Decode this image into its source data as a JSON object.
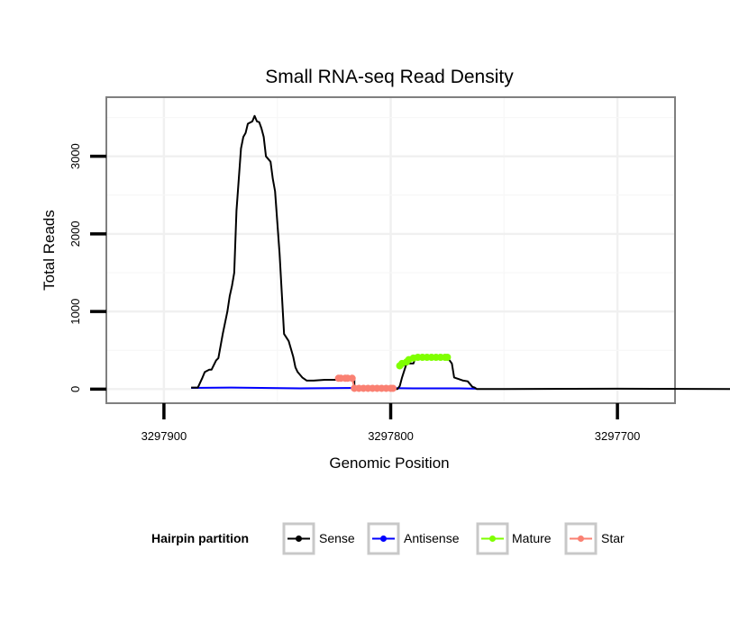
{
  "chart_data": {
    "type": "line",
    "title": "Small RNA-seq Read Density",
    "xlabel": "Genomic Position",
    "ylabel": "Total Reads",
    "xlim": [
      3297925,
      3297675
    ],
    "ylim": [
      -170,
      3750
    ],
    "x_reversed": true,
    "grid": true,
    "x_ticks": [
      3297900,
      3297800,
      3297700
    ],
    "x_tick_labels": [
      "3297900",
      "3297800",
      "3297700"
    ],
    "y_ticks": [
      0,
      1000,
      2000,
      3000
    ],
    "y_tick_labels": [
      "0",
      "1000",
      "2000",
      "3000"
    ],
    "legend": {
      "title": "Hairpin partition",
      "position": "bottom",
      "items": [
        {
          "label": "Sense",
          "color": "#000000"
        },
        {
          "label": "Antisense",
          "color": "#0000ff"
        },
        {
          "label": "Mature",
          "color": "#7fff00"
        },
        {
          "label": "Star",
          "color": "#fa8072"
        }
      ]
    },
    "series": [
      {
        "name": "Sense",
        "color": "#000000",
        "x": [
          3297888,
          3297885,
          3297883,
          3297882,
          3297880,
          3297879,
          3297877,
          3297876,
          3297874,
          3297872,
          3297871,
          3297870,
          3297869,
          3297868,
          3297866,
          3297865,
          3297864,
          3297863,
          3297861,
          3297860,
          3297859,
          3297858,
          3297857,
          3297856,
          3297855,
          3297853,
          3297852,
          3297851,
          3297850,
          3297849,
          3297847,
          3297845,
          3297843,
          3297842,
          3297841,
          3297839,
          3297837,
          3297834,
          3297829,
          3297824,
          3297820,
          3297819,
          3297816,
          3297816,
          3297812,
          3297810,
          3297800,
          3297797,
          3297796,
          3297795,
          3297793,
          3297792,
          3297790,
          3297789,
          3297775,
          3297773,
          3297772,
          3297768,
          3297766,
          3297764,
          3297763,
          3297762,
          3297750,
          3297700,
          3297650
        ],
        "y": [
          20,
          20,
          150,
          220,
          250,
          250,
          370,
          400,
          720,
          1000,
          1200,
          1330,
          1500,
          2300,
          3100,
          3250,
          3300,
          3420,
          3450,
          3520,
          3450,
          3440,
          3360,
          3250,
          3000,
          2930,
          2710,
          2550,
          2150,
          1750,
          710,
          620,
          420,
          280,
          220,
          150,
          110,
          110,
          120,
          120,
          120,
          140,
          140,
          10,
          10,
          0,
          0,
          0,
          40,
          150,
          330,
          330,
          330,
          410,
          410,
          330,
          150,
          110,
          100,
          30,
          20,
          0,
          0,
          5,
          0
        ]
      },
      {
        "name": "Antisense",
        "color": "#0000ff",
        "x": [
          3297888,
          3297870,
          3297840,
          3297810,
          3297790,
          3297770,
          3297762
        ],
        "y": [
          15,
          20,
          10,
          15,
          10,
          10,
          5
        ]
      },
      {
        "name": "Mature",
        "color": "#7fff00",
        "x": [
          3297796,
          3297795,
          3297793,
          3297792,
          3297790,
          3297788,
          3297786,
          3297784,
          3297782,
          3297780,
          3297778,
          3297776,
          3297775
        ],
        "y": [
          300,
          330,
          350,
          380,
          400,
          410,
          410,
          410,
          410,
          410,
          410,
          410,
          410
        ]
      },
      {
        "name": "Star",
        "color": "#fa8072",
        "x": [
          3297823,
          3297822,
          3297820,
          3297819,
          3297817,
          3297816,
          3297814,
          3297812,
          3297810,
          3297808,
          3297806,
          3297804,
          3297802,
          3297800,
          3297799
        ],
        "y": [
          140,
          140,
          140,
          140,
          140,
          10,
          10,
          10,
          10,
          10,
          10,
          10,
          10,
          10,
          10
        ]
      }
    ]
  }
}
